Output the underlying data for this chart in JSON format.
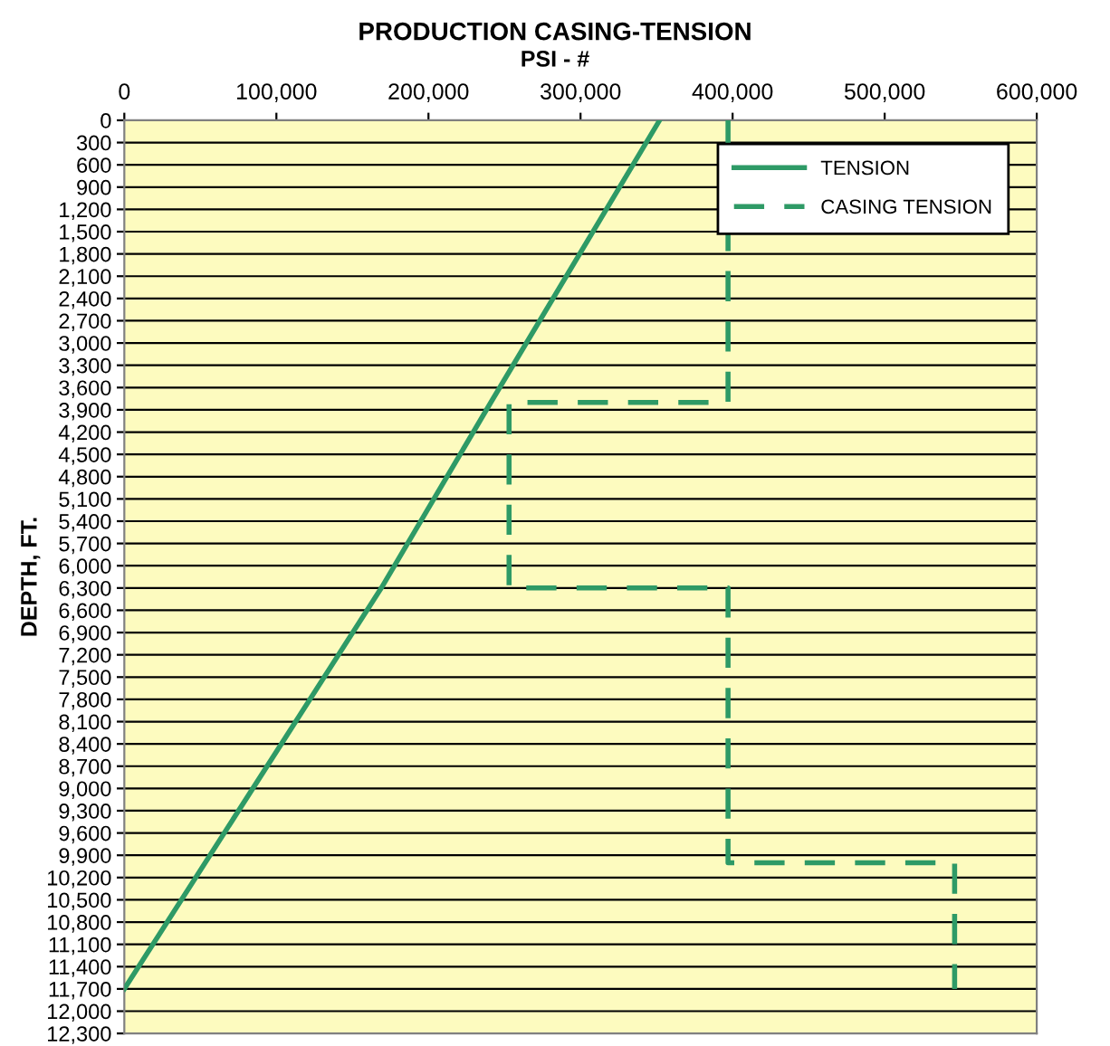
{
  "chart_data": {
    "type": "line",
    "title": "PRODUCTION CASING-TENSION",
    "subtitle": "PSI - #",
    "ylabel": "DEPTH, FT.",
    "xlim": [
      0,
      600000
    ],
    "ylim": [
      12300,
      0
    ],
    "xticks": [
      0,
      {
        "value": 100000,
        "label": "100,000"
      },
      {
        "value": 200000,
        "label": "200,000"
      },
      {
        "value": 300000,
        "label": "300,000"
      },
      {
        "value": 400000,
        "label": "400,000"
      },
      {
        "value": 500000,
        "label": "500,000"
      },
      {
        "value": 600000,
        "label": "600,000"
      }
    ],
    "yticks": [
      0,
      300,
      600,
      900,
      {
        "value": 1200,
        "label": "1,200"
      },
      {
        "value": 1500,
        "label": "1,500"
      },
      {
        "value": 1800,
        "label": "1,800"
      },
      {
        "value": 2100,
        "label": "2,100"
      },
      {
        "value": 2400,
        "label": "2,400"
      },
      {
        "value": 2700,
        "label": "2,700"
      },
      {
        "value": 3000,
        "label": "3,000"
      },
      {
        "value": 3300,
        "label": "3,300"
      },
      {
        "value": 3600,
        "label": "3,600"
      },
      {
        "value": 3900,
        "label": "3,900"
      },
      {
        "value": 4200,
        "label": "4,200"
      },
      {
        "value": 4500,
        "label": "4,500"
      },
      {
        "value": 4800,
        "label": "4,800"
      },
      {
        "value": 5100,
        "label": "5,100"
      },
      {
        "value": 5400,
        "label": "5,400"
      },
      {
        "value": 5700,
        "label": "5,700"
      },
      {
        "value": 6000,
        "label": "6,000"
      },
      {
        "value": 6300,
        "label": "6,300"
      },
      {
        "value": 6600,
        "label": "6,600"
      },
      {
        "value": 6900,
        "label": "6,900"
      },
      {
        "value": 7200,
        "label": "7,200"
      },
      {
        "value": 7500,
        "label": "7,500"
      },
      {
        "value": 7800,
        "label": "7,800"
      },
      {
        "value": 8100,
        "label": "8,100"
      },
      {
        "value": 8400,
        "label": "8,400"
      },
      {
        "value": 8700,
        "label": "8,700"
      },
      {
        "value": 9000,
        "label": "9,000"
      },
      {
        "value": 9300,
        "label": "9,300"
      },
      {
        "value": 9600,
        "label": "9,600"
      },
      {
        "value": 9900,
        "label": "9,900"
      },
      {
        "value": 10200,
        "label": "10,200"
      },
      {
        "value": 10500,
        "label": "10,500"
      },
      {
        "value": 10800,
        "label": "10,800"
      },
      {
        "value": 11100,
        "label": "11,100"
      },
      {
        "value": 11400,
        "label": "11,400"
      },
      {
        "value": 11700,
        "label": "11,700"
      },
      {
        "value": 12000,
        "label": "12,000"
      },
      {
        "value": 12300,
        "label": "12,300"
      }
    ],
    "grid": "y",
    "legend": "top right",
    "marker": "none",
    "series": [
      {
        "name": "TENSION",
        "color": "#2e9a66",
        "line_style": "solid",
        "x": [
          352000,
          241000,
          169000,
          0
        ],
        "values": [
          0,
          3800,
          6300,
          11700
        ]
      },
      {
        "name": "CASING TENSION",
        "color": "#2e9a66",
        "line_style": "dashed",
        "x": [
          397000,
          397000,
          253000,
          253000,
          397000,
          397000,
          546000,
          546000
        ],
        "values": [
          0,
          3800,
          3800,
          6300,
          6300,
          10000,
          10000,
          11700
        ]
      }
    ]
  }
}
